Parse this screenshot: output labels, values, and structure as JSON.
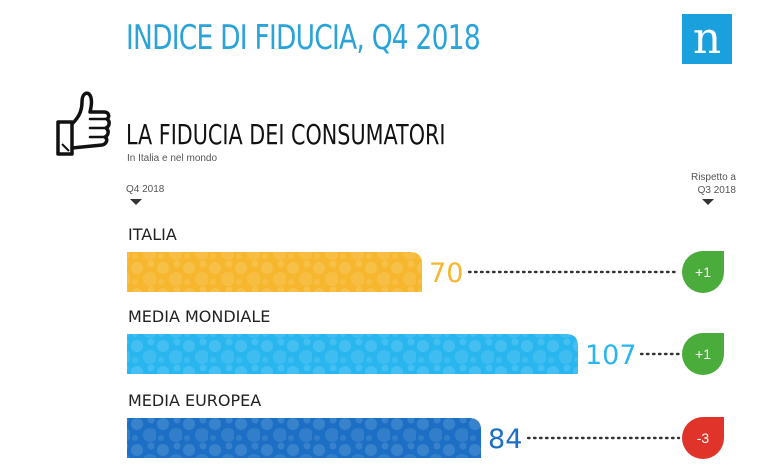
{
  "header": {
    "title": "INDICE DI FIDUCIA, Q4 2018",
    "title_color": "#2aa3d8",
    "logo_text": "n",
    "logo_color": "#1aa0dc"
  },
  "section": {
    "icon": "thumbs-up-icon",
    "title": "LA FIDUCIA DEI CONSUMATORI",
    "subtitle": "In Italia e nel mondo"
  },
  "columns": {
    "period": "Q4 2018",
    "compare_line1": "Rispetto a",
    "compare_line2": "Q3 2018"
  },
  "chart_data": {
    "type": "bar",
    "orientation": "horizontal",
    "categories": [
      "ITALIA",
      "MEDIA MONDIALE",
      "MEDIA EUROPEA"
    ],
    "values": [
      70,
      107,
      84
    ],
    "value_labels": [
      "70",
      "107",
      "84"
    ],
    "change_vs_q3_2018": [
      1,
      1,
      -3
    ],
    "change_labels": [
      "+1",
      "+1",
      "-3"
    ],
    "bar_colors": [
      "#f6b72e",
      "#29b6ef",
      "#1c6fc4"
    ],
    "value_label_colors": [
      "#f6b72e",
      "#29b6ef",
      "#1c6fc4"
    ],
    "change_colors": {
      "positive": "#4aac3a",
      "negative": "#e0342b"
    },
    "xlim": [
      0,
      107
    ],
    "grid": false,
    "legend": "none"
  }
}
